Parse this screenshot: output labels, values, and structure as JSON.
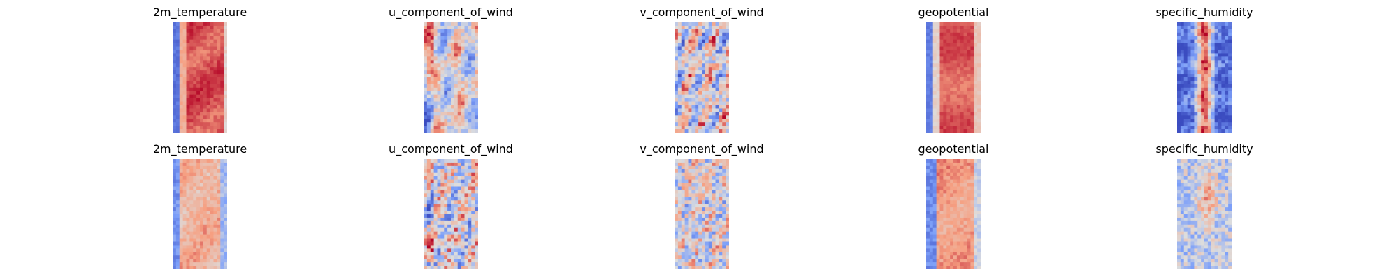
{
  "chart_data": {
    "type": "heatmap",
    "colormap": "coolwarm",
    "axes_visible": false,
    "rows": [
      {
        "panels": [
          {
            "title": "2m_temperature",
            "variable": "2m_temperature",
            "pattern": "temp_band",
            "noise": 0.1
          },
          {
            "title": "u_component_of_wind",
            "variable": "u_component_of_wind",
            "pattern": "wind_u",
            "noise": 0.3
          },
          {
            "title": "v_component_of_wind",
            "variable": "v_component_of_wind",
            "pattern": "wind_v",
            "noise": 0.45
          },
          {
            "title": "geopotential",
            "variable": "geopotential",
            "pattern": "geo_band",
            "noise": 0.08
          },
          {
            "title": "specific_humidity",
            "variable": "specific_humidity",
            "pattern": "humidity",
            "noise": 0.3
          }
        ]
      },
      {
        "panels": [
          {
            "title": "2m_temperature",
            "variable": "2m_temperature",
            "pattern": "temp_band_soft",
            "noise": 0.18
          },
          {
            "title": "u_component_of_wind",
            "variable": "u_component_of_wind",
            "pattern": "wind_u_noisy",
            "noise": 0.55
          },
          {
            "title": "v_component_of_wind",
            "variable": "v_component_of_wind",
            "pattern": "wind_v_noisy",
            "noise": 0.5
          },
          {
            "title": "geopotential",
            "variable": "geopotential",
            "pattern": "geo_band_soft",
            "noise": 0.15
          },
          {
            "title": "specific_humidity",
            "variable": "specific_humidity",
            "pattern": "humidity_soft",
            "noise": 0.35
          }
        ]
      }
    ]
  }
}
